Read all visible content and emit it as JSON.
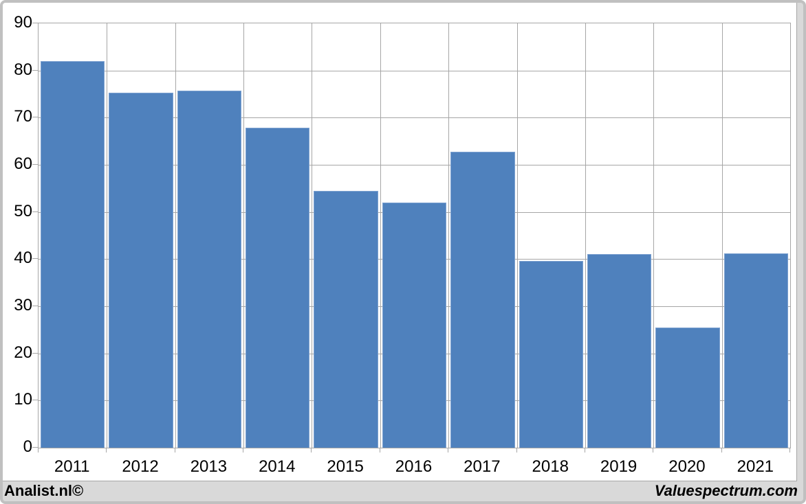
{
  "chart_data": {
    "type": "bar",
    "title": "",
    "xlabel": "",
    "ylabel": "",
    "categories": [
      "2011",
      "2012",
      "2013",
      "2014",
      "2015",
      "2016",
      "2017",
      "2018",
      "2019",
      "2020",
      "2021"
    ],
    "values": [
      82,
      75.3,
      75.7,
      67.8,
      54.4,
      52,
      62.8,
      39.6,
      41,
      25.5,
      41.2
    ],
    "ylim": [
      0,
      90
    ],
    "yticks": [
      0,
      10,
      20,
      30,
      40,
      50,
      60,
      70,
      80,
      90
    ],
    "grid": "horizontal-and-vertical",
    "legend_position": "none",
    "bar_color": "#4F81BD",
    "bar_edge_color": "#7fa3d1",
    "gridline_color": "#a6a6a6",
    "plot_background": "#ffffff",
    "page_background": "#d9d9d9"
  },
  "footer": {
    "left_text": "Analist.nl©",
    "right_text": "Valuespectrum.com"
  }
}
